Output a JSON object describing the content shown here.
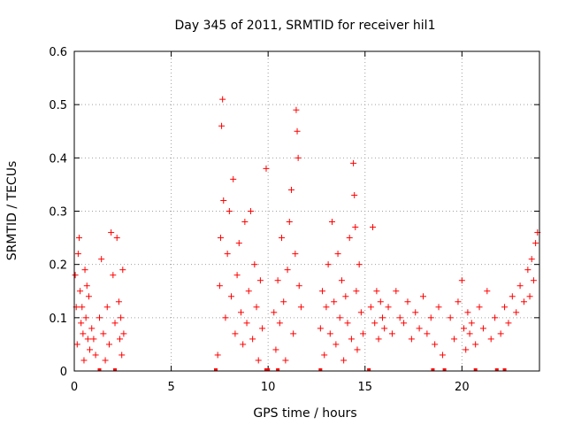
{
  "chart_data": {
    "type": "scatter",
    "title": "Day 345 of 2011, SRMTID for receiver hil1",
    "xlabel": "GPS time / hours",
    "ylabel": "SRMTID / TECUs",
    "xlim": [
      0,
      24
    ],
    "ylim": [
      0,
      0.6
    ],
    "xticks": [
      "0",
      "5",
      "10",
      "15",
      "20"
    ],
    "xtick_values": [
      0,
      5,
      10,
      15,
      20
    ],
    "yticks": [
      "0",
      "0.1",
      "0.2",
      "0.3",
      "0.4",
      "0.5",
      "0.6"
    ],
    "ytick_values": [
      0,
      0.1,
      0.2,
      0.3,
      0.4,
      0.5,
      0.6
    ],
    "grid": true,
    "marker": "+",
    "marker_color": "#ff0000",
    "series": [
      {
        "name": "SRMTID hil1",
        "x": [
          0.05,
          0.1,
          0.15,
          0.2,
          0.25,
          0.3,
          0.35,
          0.4,
          0.45,
          0.5,
          0.55,
          0.6,
          0.65,
          0.7,
          0.75,
          0.8,
          0.9,
          1.0,
          1.1,
          1.3,
          1.4,
          1.5,
          1.6,
          1.7,
          1.8,
          1.9,
          2.0,
          2.1,
          2.2,
          2.3,
          2.35,
          2.4,
          2.45,
          2.5,
          2.55,
          7.4,
          7.5,
          7.55,
          7.6,
          7.65,
          7.7,
          7.8,
          7.9,
          8.0,
          8.1,
          8.2,
          8.3,
          8.4,
          8.5,
          8.6,
          8.7,
          8.8,
          8.9,
          9.0,
          9.1,
          9.2,
          9.3,
          9.4,
          9.5,
          9.6,
          9.7,
          9.9,
          10.3,
          10.4,
          10.5,
          10.6,
          10.7,
          10.8,
          10.9,
          11.0,
          11.1,
          11.2,
          11.3,
          11.4,
          11.45,
          11.5,
          11.55,
          11.6,
          11.7,
          12.7,
          12.8,
          12.9,
          13.0,
          13.1,
          13.2,
          13.3,
          13.4,
          13.5,
          13.6,
          13.7,
          13.8,
          13.9,
          14.0,
          14.1,
          14.2,
          14.3,
          14.4,
          14.45,
          14.5,
          14.55,
          14.6,
          14.7,
          14.8,
          14.9,
          15.3,
          15.4,
          15.5,
          15.6,
          15.7,
          15.8,
          15.9,
          16.0,
          16.2,
          16.4,
          16.6,
          16.8,
          17.0,
          17.2,
          17.4,
          17.6,
          17.8,
          18.0,
          18.2,
          18.4,
          18.6,
          18.8,
          19.0,
          19.4,
          19.6,
          19.8,
          20.0,
          20.1,
          20.2,
          20.3,
          20.4,
          20.5,
          20.7,
          20.9,
          21.1,
          21.3,
          21.5,
          21.7,
          22.0,
          22.2,
          22.4,
          22.6,
          22.8,
          23.0,
          23.2,
          23.4,
          23.5,
          23.6,
          23.7,
          23.8,
          23.9
        ],
        "y": [
          0.18,
          0.12,
          0.05,
          0.22,
          0.25,
          0.15,
          0.09,
          0.12,
          0.07,
          0.02,
          0.19,
          0.1,
          0.16,
          0.06,
          0.14,
          0.04,
          0.08,
          0.06,
          0.03,
          0.1,
          0.21,
          0.07,
          0.02,
          0.12,
          0.05,
          0.26,
          0.18,
          0.09,
          0.25,
          0.13,
          0.06,
          0.1,
          0.03,
          0.19,
          0.07,
          0.03,
          0.16,
          0.25,
          0.46,
          0.51,
          0.32,
          0.1,
          0.22,
          0.3,
          0.14,
          0.36,
          0.07,
          0.18,
          0.24,
          0.11,
          0.05,
          0.28,
          0.09,
          0.15,
          0.3,
          0.06,
          0.2,
          0.12,
          0.02,
          0.17,
          0.08,
          0.38,
          0.11,
          0.04,
          0.17,
          0.09,
          0.25,
          0.13,
          0.02,
          0.19,
          0.28,
          0.34,
          0.07,
          0.22,
          0.49,
          0.45,
          0.4,
          0.16,
          0.12,
          0.08,
          0.15,
          0.03,
          0.12,
          0.2,
          0.07,
          0.28,
          0.13,
          0.05,
          0.22,
          0.1,
          0.17,
          0.02,
          0.14,
          0.09,
          0.25,
          0.06,
          0.39,
          0.33,
          0.27,
          0.15,
          0.04,
          0.2,
          0.11,
          0.07,
          0.12,
          0.27,
          0.09,
          0.15,
          0.06,
          0.13,
          0.1,
          0.08,
          0.12,
          0.07,
          0.15,
          0.1,
          0.09,
          0.13,
          0.06,
          0.11,
          0.08,
          0.14,
          0.07,
          0.1,
          0.05,
          0.12,
          0.03,
          0.1,
          0.06,
          0.13,
          0.17,
          0.08,
          0.04,
          0.11,
          0.07,
          0.09,
          0.05,
          0.12,
          0.08,
          0.15,
          0.06,
          0.1,
          0.07,
          0.12,
          0.09,
          0.14,
          0.11,
          0.16,
          0.13,
          0.19,
          0.14,
          0.21,
          0.17,
          0.24,
          0.26
        ]
      }
    ],
    "zero_markers_x": [
      1.3,
      2.1,
      7.3,
      9.9,
      10.0,
      10.5,
      12.7,
      15.2,
      18.5,
      19.1,
      20.7,
      21.8,
      22.2
    ]
  }
}
